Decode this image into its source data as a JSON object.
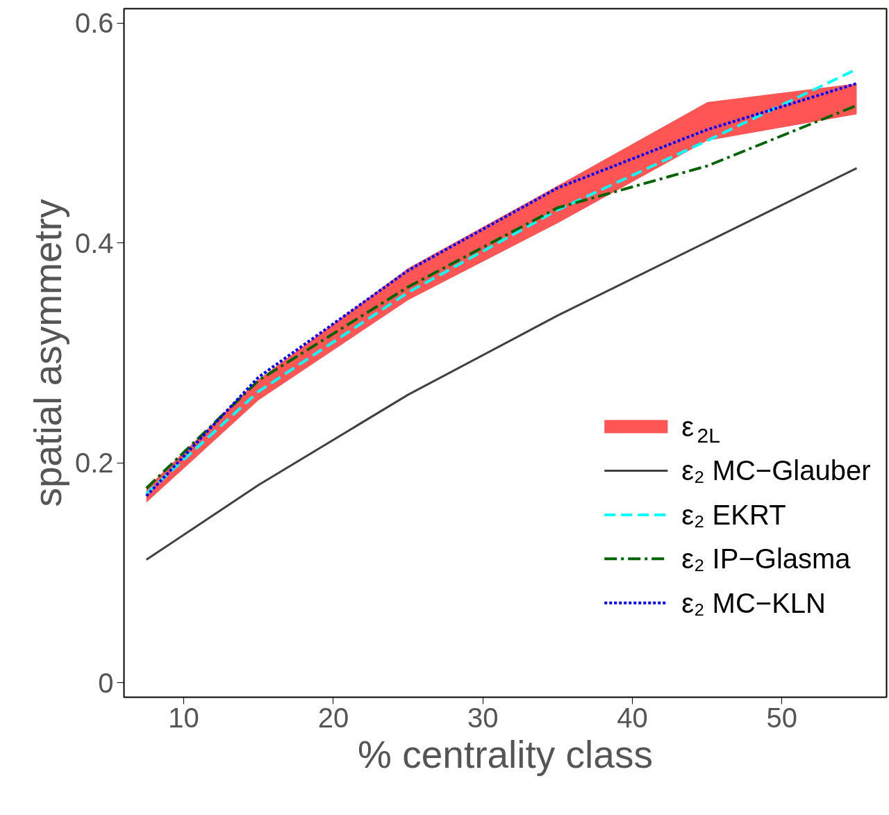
{
  "chart_data": {
    "type": "line",
    "xlabel": "% centrality class",
    "ylabel": "spatial asymmetry",
    "x": [
      7.5,
      15,
      25,
      35,
      45,
      55
    ],
    "xlim": [
      6,
      57
    ],
    "ylim": [
      -0.013,
      0.613
    ],
    "xticks": [
      10,
      20,
      30,
      40,
      50
    ],
    "yticks": [
      0,
      0.2,
      0.4,
      0.6
    ],
    "grid": false,
    "legend": "right",
    "marker": "none",
    "series": [
      {
        "name": "ε$_{2L}$",
        "type": "line",
        "line_style": "solid",
        "color": "#ff5555",
        "values": [
          null,
          null,
          null,
          null,
          null,
          null
        ],
        "lower": [
          0.164,
          0.257,
          0.348,
          0.418,
          0.493,
          0.517
        ],
        "upper": [
          0.177,
          0.276,
          0.377,
          0.452,
          0.528,
          0.545
        ]
      },
      {
        "name": "ε₂ MC−Glauber",
        "color": "#404040",
        "line_style": "solid",
        "values": [
          0.112,
          0.18,
          0.262,
          0.334,
          0.401,
          0.468
        ]
      },
      {
        "name": "ε₂ EKRT",
        "color": "#00ffff",
        "line_style": "dashed",
        "values": [
          0.172,
          0.265,
          0.355,
          0.43,
          0.493,
          0.558
        ]
      },
      {
        "name": "ε₂ IP−Glasma",
        "color": "#006400",
        "line_style": "dashdot",
        "values": [
          0.177,
          0.275,
          0.36,
          0.432,
          0.47,
          0.525
        ]
      },
      {
        "name": "ε₂ MC−KLN",
        "color": "#0000ff",
        "line_style": "dotted",
        "values": [
          0.17,
          0.278,
          0.375,
          0.45,
          0.503,
          0.545
        ]
      }
    ]
  }
}
